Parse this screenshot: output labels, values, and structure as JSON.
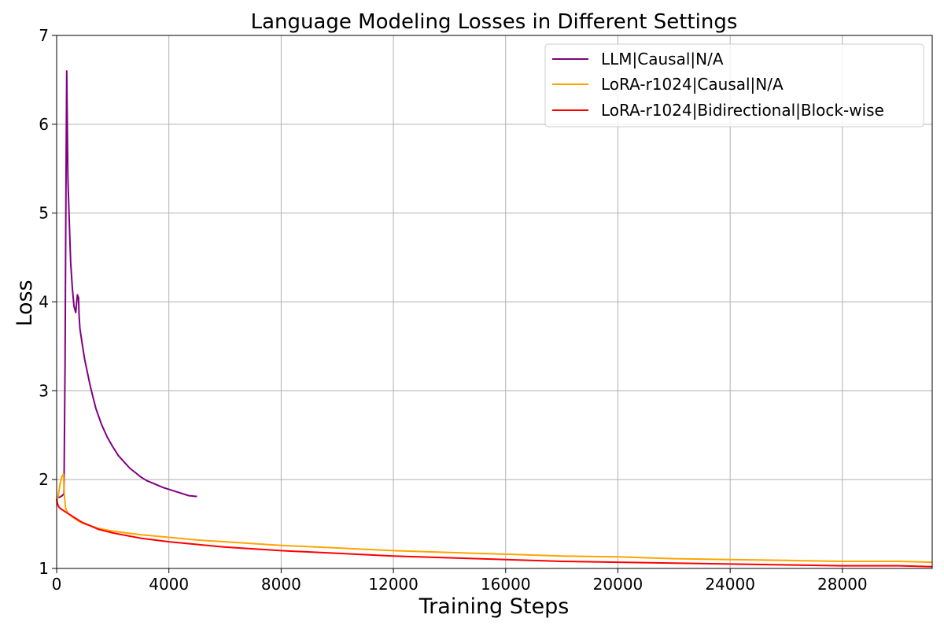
{
  "chart_data": {
    "type": "line",
    "title": "Language Modeling Losses in Different Settings",
    "xlabel": "Training Steps",
    "ylabel": "Loss",
    "xlim": [
      0,
      31200
    ],
    "ylim": [
      1,
      7
    ],
    "xticks": [
      0,
      4000,
      8000,
      12000,
      16000,
      20000,
      24000,
      28000
    ],
    "xtick_labels": [
      "0",
      "4000",
      "8000",
      "12000",
      "16000",
      "20000",
      "24000",
      "28000"
    ],
    "yticks": [
      1,
      2,
      3,
      4,
      5,
      6,
      7
    ],
    "ytick_labels": [
      "1",
      "2",
      "3",
      "4",
      "5",
      "6",
      "7"
    ],
    "grid": true,
    "legend_position": "top-right",
    "series": [
      {
        "name": "LLM|Causal|N/A",
        "color": "#800080",
        "x": [
          0,
          100,
          200,
          260,
          300,
          330,
          360,
          400,
          450,
          500,
          560,
          620,
          680,
          700,
          740,
          780,
          800,
          830,
          900,
          1000,
          1200,
          1400,
          1600,
          1800,
          2000,
          2200,
          2400,
          2600,
          2800,
          3000,
          3200,
          3500,
          3800,
          4100,
          4400,
          4700,
          5000
        ],
        "y": [
          1.8,
          1.8,
          1.82,
          1.84,
          3.3,
          5.2,
          6.6,
          5.4,
          4.9,
          4.45,
          4.15,
          3.95,
          3.88,
          3.95,
          4.08,
          4.05,
          3.85,
          3.7,
          3.55,
          3.35,
          3.05,
          2.8,
          2.62,
          2.48,
          2.37,
          2.27,
          2.2,
          2.13,
          2.08,
          2.03,
          1.99,
          1.95,
          1.91,
          1.88,
          1.85,
          1.82,
          1.81
        ]
      },
      {
        "name": "LoRA-r1024|Causal|N/A",
        "color": "#FFA500",
        "x": [
          0,
          60,
          120,
          180,
          240,
          280,
          320,
          400,
          600,
          800,
          1000,
          1500,
          2000,
          3000,
          4000,
          5000,
          6000,
          8000,
          10000,
          12000,
          14000,
          16000,
          18000,
          20000,
          22000,
          24000,
          26000,
          28000,
          30000,
          31200
        ],
        "y": [
          1.75,
          1.82,
          1.95,
          2.03,
          2.06,
          1.8,
          1.68,
          1.62,
          1.57,
          1.53,
          1.5,
          1.45,
          1.42,
          1.38,
          1.35,
          1.32,
          1.3,
          1.26,
          1.23,
          1.2,
          1.18,
          1.16,
          1.14,
          1.13,
          1.11,
          1.1,
          1.09,
          1.08,
          1.08,
          1.07
        ]
      },
      {
        "name": "LoRA-r1024|Bidirectional|Block-wise",
        "color": "#FF0000",
        "x": [
          0,
          40,
          80,
          150,
          300,
          500,
          700,
          900,
          1200,
          1500,
          2000,
          3000,
          4000,
          5000,
          6000,
          8000,
          10000,
          12000,
          14000,
          16000,
          18000,
          20000,
          22000,
          24000,
          26000,
          28000,
          30000,
          31200
        ],
        "y": [
          1.78,
          1.72,
          1.69,
          1.67,
          1.64,
          1.6,
          1.56,
          1.52,
          1.48,
          1.44,
          1.4,
          1.34,
          1.3,
          1.27,
          1.24,
          1.2,
          1.17,
          1.14,
          1.12,
          1.1,
          1.08,
          1.07,
          1.06,
          1.05,
          1.04,
          1.03,
          1.03,
          1.02
        ]
      }
    ]
  }
}
